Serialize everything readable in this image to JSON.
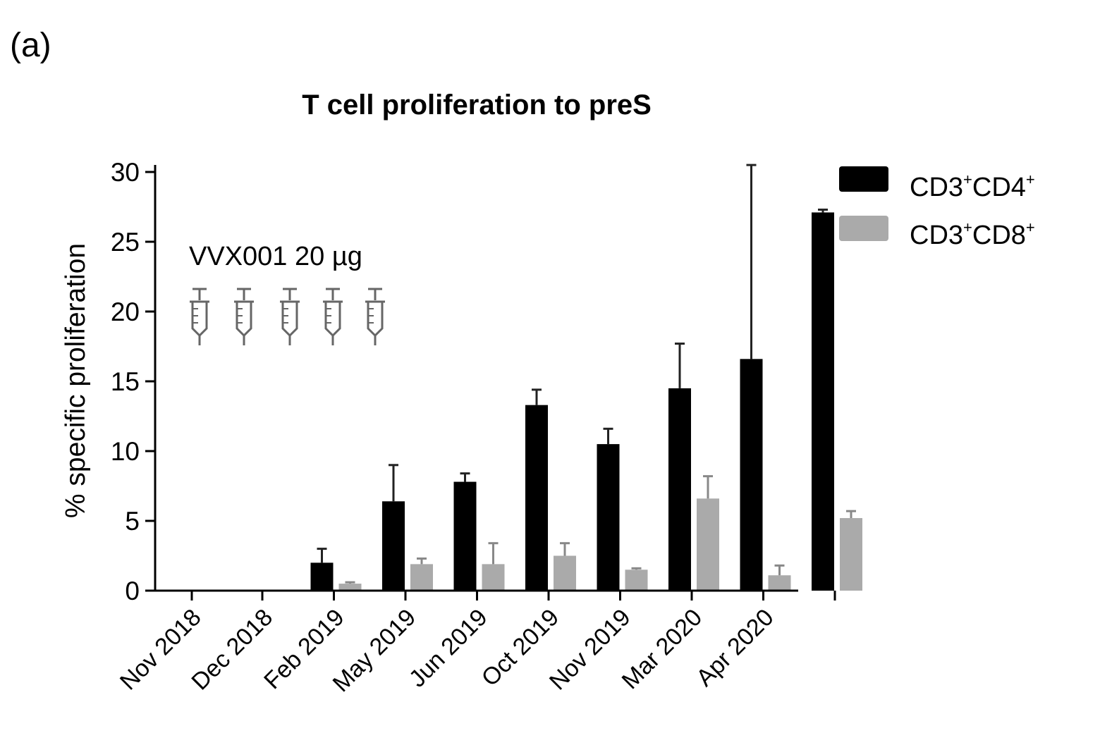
{
  "panel_label": "(a)",
  "colors": {
    "cd4": "#000000",
    "cd8": "#aaaaaa",
    "error_cd4": "#222222",
    "error_cd8": "#888888",
    "axis": "#000000"
  },
  "annotation": {
    "text": "VVX001 20 µg",
    "icon": "syringe-icon",
    "injections": [
      "Dec 2018",
      "Feb 2019",
      "May 2019",
      "Jun 2019",
      "Oct 2019"
    ]
  },
  "legend": [
    {
      "base": "CD3",
      "sup1": "+",
      "mid": "CD4",
      "sup2": "+"
    },
    {
      "base": "CD3",
      "sup1": "+",
      "mid": "CD8",
      "sup2": "+"
    }
  ],
  "chart_data": {
    "type": "bar",
    "title": "T cell proliferation to preS",
    "xlabel": "",
    "ylabel": "% specific proliferation",
    "ylim": [
      0,
      30
    ],
    "yticks": [
      0,
      5,
      10,
      15,
      20,
      25,
      30
    ],
    "categories": [
      "Nov 2018",
      "Dec 2018",
      "Feb 2019",
      "May 2019",
      "Jun 2019",
      "Oct 2019",
      "Nov 2019",
      "Mar 2020",
      "Apr 2020"
    ],
    "series": [
      {
        "name": "CD3+CD4+",
        "values": [
          0,
          2.0,
          6.4,
          7.8,
          13.3,
          10.5,
          14.5,
          16.6,
          27.1
        ],
        "errors": [
          0,
          1.0,
          2.6,
          0.6,
          1.1,
          1.1,
          3.2,
          13.9,
          0.2
        ]
      },
      {
        "name": "CD3+CD8+",
        "values": [
          0,
          0.5,
          1.9,
          1.9,
          2.5,
          1.5,
          6.6,
          1.1,
          5.2
        ],
        "errors": [
          0,
          0.1,
          0.4,
          1.5,
          0.9,
          0.1,
          1.6,
          0.7,
          0.5
        ]
      }
    ],
    "legend_position": "top-right",
    "grid": false
  }
}
